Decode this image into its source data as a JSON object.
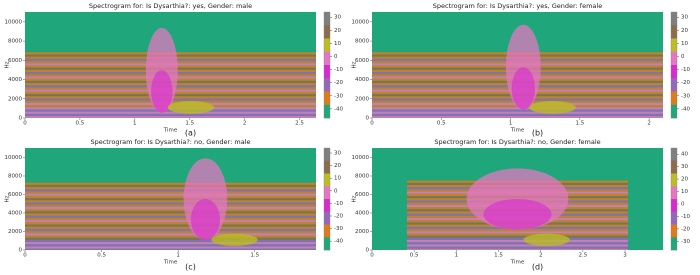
{
  "chart_data": [
    {
      "type": "spectrogram",
      "title": "Spectrogram for: Is Dysarthia?: yes, Gender: male",
      "xlabel": "Time",
      "ylabel": "Hz",
      "caption": "(a)",
      "xlim": [
        0,
        2.65
      ],
      "xticks": [
        0,
        0.5,
        1,
        1.5,
        2,
        2.5
      ],
      "ylim": [
        0,
        11025
      ],
      "yticks": [
        0,
        2000,
        4000,
        6000,
        8000,
        10000
      ],
      "clim": [
        -47,
        34
      ],
      "cticks": [
        30,
        20,
        10,
        0,
        -10,
        -20,
        -30,
        -40
      ],
      "cmap": [
        "#7f7f7f",
        "#8c6d4b",
        "#bcbd22",
        "#e377c2",
        "#d92ad2",
        "#9467bd",
        "#e07b1a",
        "#1fa67a"
      ]
    },
    {
      "type": "spectrogram",
      "title": "Spectrogram for: Is Dysarthia?: yes, Gender: female",
      "xlabel": "Time",
      "ylabel": "Hz",
      "caption": "(b)",
      "xlim": [
        0,
        2.1
      ],
      "xticks": [
        0,
        0.5,
        1,
        1.5,
        2
      ],
      "ylim": [
        0,
        11025
      ],
      "yticks": [
        0,
        2000,
        4000,
        6000,
        8000,
        10000
      ],
      "clim": [
        -47,
        34
      ],
      "cticks": [
        30,
        20,
        10,
        0,
        -10,
        -20,
        -30,
        -40
      ],
      "cmap": [
        "#7f7f7f",
        "#8c6d4b",
        "#bcbd22",
        "#e377c2",
        "#d92ad2",
        "#9467bd",
        "#e07b1a",
        "#1fa67a"
      ]
    },
    {
      "type": "spectrogram",
      "title": "Spectrogram for: Is Dysarthia?: no, Gender: male",
      "xlabel": "Time",
      "ylabel": "Hz",
      "caption": "(c)",
      "xlim": [
        0,
        1.9
      ],
      "xticks": [
        0,
        0.5,
        1,
        1.5
      ],
      "ylim": [
        0,
        11025
      ],
      "yticks": [
        0,
        2000,
        4000,
        6000,
        8000,
        10000
      ],
      "clim": [
        -47,
        34
      ],
      "cticks": [
        30,
        20,
        10,
        0,
        -10,
        -20,
        -30,
        -40
      ],
      "cmap": [
        "#7f7f7f",
        "#8c6d4b",
        "#bcbd22",
        "#e377c2",
        "#d92ad2",
        "#9467bd",
        "#e07b1a",
        "#1fa67a"
      ]
    },
    {
      "type": "spectrogram",
      "title": "Spectrogram for: Is Dysarthia?: no, Gender: female",
      "xlabel": "Time",
      "ylabel": "Hz",
      "caption": "(d)",
      "xlim": [
        0,
        3.45
      ],
      "xticks": [
        0,
        0.5,
        1,
        1.5,
        2,
        2.5,
        3
      ],
      "ylim": [
        0,
        11025
      ],
      "yticks": [
        0,
        2000,
        4000,
        6000,
        8000,
        10000
      ],
      "clim": [
        -37,
        45
      ],
      "cticks": [
        40,
        30,
        20,
        10,
        0,
        -10,
        -20,
        -30
      ],
      "cmap": [
        "#7f7f7f",
        "#8c6d4b",
        "#bcbd22",
        "#e377c2",
        "#d92ad2",
        "#9467bd",
        "#e07b1a",
        "#1fa67a"
      ]
    }
  ]
}
